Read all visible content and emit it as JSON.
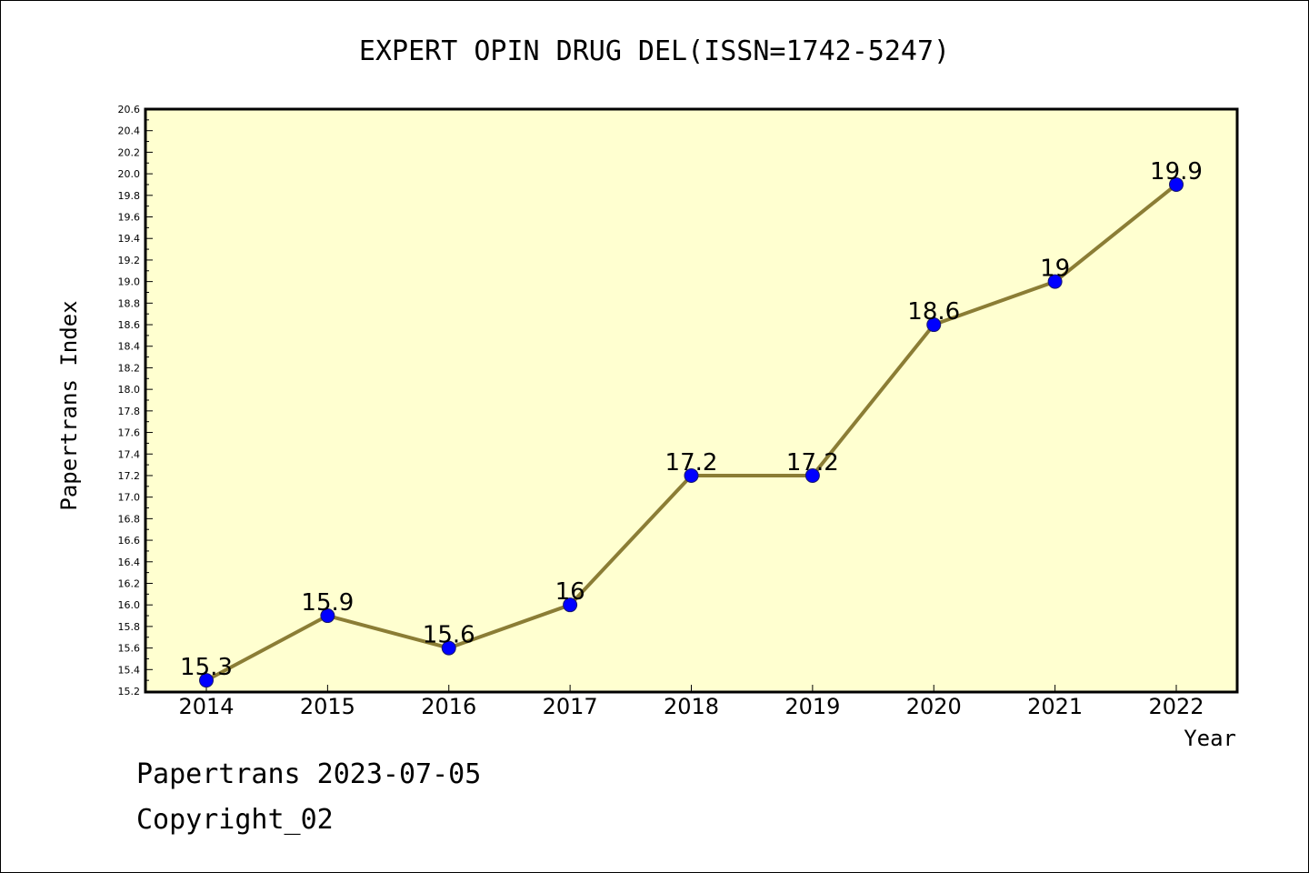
{
  "chart_data": {
    "type": "line",
    "title": "EXPERT OPIN DRUG DEL(ISSN=1742-5247)",
    "xlabel": "Year",
    "ylabel": "Papertrans Index",
    "categories": [
      "2014",
      "2015",
      "2016",
      "2017",
      "2018",
      "2019",
      "2020",
      "2021",
      "2022"
    ],
    "series": [
      {
        "values": [
          15.3,
          15.9,
          15.6,
          16.0,
          17.2,
          17.2,
          18.6,
          19.0,
          19.9
        ],
        "labels": [
          "15.3",
          "15.9",
          "15.6",
          "16",
          "17.2",
          "17.2",
          "18.6",
          "19",
          "19.9"
        ],
        "line_color": "#8b7d35",
        "marker_color": "#0000ff"
      }
    ],
    "ylim": [
      15.2,
      20.6
    ],
    "ytick_step": 0.2,
    "yticks": [
      "15.2",
      "15.4",
      "15.6",
      "15.8",
      "16.0",
      "16.2",
      "16.4",
      "16.6",
      "16.8",
      "17.0",
      "17.2",
      "17.4",
      "17.6",
      "17.8",
      "18.0",
      "18.2",
      "18.4",
      "18.6",
      "18.8",
      "19.0",
      "19.2",
      "19.4",
      "19.6",
      "19.8",
      "20.0",
      "20.2",
      "20.4",
      "20.6"
    ],
    "plot_background": "#ffffd0",
    "grid": false
  },
  "footer": {
    "line1": "Papertrans 2023-07-05",
    "line2": "Copyright_02"
  }
}
